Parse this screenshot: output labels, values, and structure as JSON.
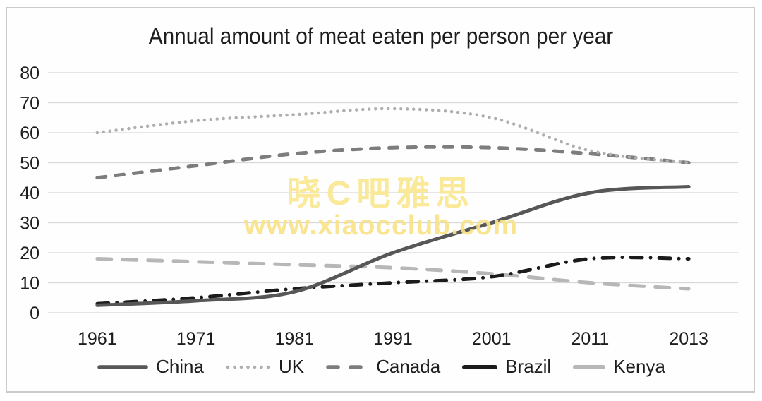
{
  "watermark": {
    "line1": "晓C吧雅思",
    "line2": "www.xiaocclub.com",
    "color_line1": "rgba(248,231,144,0.92)",
    "color_line2": "rgba(248,227,136,0.92)"
  },
  "frame_color": "#cbcbcb",
  "text_color": "#1d1d1d",
  "gridline_color": "#d8d8d8",
  "chart_data": {
    "type": "line",
    "title": "Annual amount of meat eaten per person per year",
    "xlabel": "",
    "ylabel": "",
    "categories": [
      "1961",
      "1971",
      "1981",
      "1991",
      "2001",
      "2011",
      "2013"
    ],
    "series": [
      {
        "name": "China",
        "values": [
          2.5,
          4,
          7,
          20,
          30,
          40,
          42
        ],
        "color": "#575757",
        "style": "solid"
      },
      {
        "name": "UK",
        "values": [
          60,
          64,
          66,
          68,
          65,
          54,
          50
        ],
        "color": "#aeaeae",
        "style": "dotted"
      },
      {
        "name": "Canada",
        "values": [
          45,
          49,
          53,
          55,
          55,
          53,
          50
        ],
        "color": "#7d7d7d",
        "style": "dashed"
      },
      {
        "name": "Brazil",
        "values": [
          3,
          5,
          8,
          10,
          12,
          18,
          18
        ],
        "color": "#1b1b1b",
        "style": "dash-dot"
      },
      {
        "name": "Kenya",
        "values": [
          18,
          17,
          16,
          15,
          13,
          10,
          8
        ],
        "color": "#b7b7b7",
        "style": "long-dash"
      }
    ],
    "ylim": [
      0,
      80
    ],
    "yticks": [
      "0",
      "10",
      "20",
      "30",
      "40",
      "50",
      "60",
      "70",
      "80"
    ],
    "grid": "horizontal",
    "legend_position": "bottom"
  }
}
